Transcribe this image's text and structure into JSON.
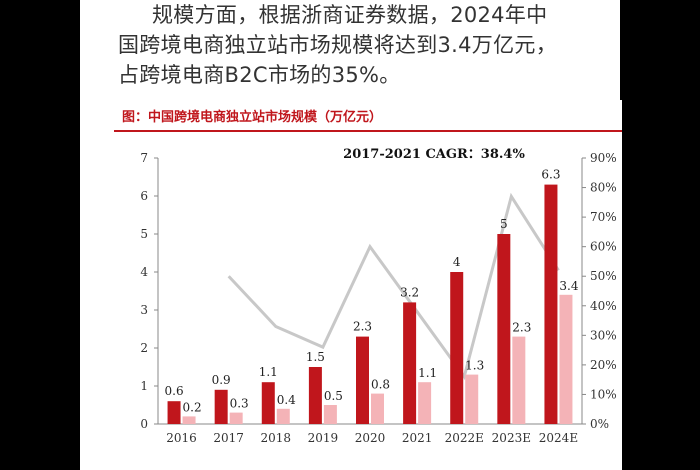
{
  "article": {
    "line1": "规模方面，根据浙商证券数据，2024年中",
    "line2": "国跨境电商独立站市场规模将达到3.4万亿元，",
    "line3": "占跨境电商B2C市场的35%。"
  },
  "chart_data": {
    "type": "bar",
    "title": "图：中国跨境电商独立站市场规模（万亿元）",
    "annotation": "2017-2021 CAGR：38.4%",
    "categories": [
      "2016",
      "2017",
      "2018",
      "2019",
      "2020",
      "2021",
      "2022E",
      "2023E",
      "2024E"
    ],
    "series": [
      {
        "type": "bar",
        "color": "#c0161c",
        "values": [
          0.6,
          0.9,
          1.1,
          1.5,
          2.3,
          3.2,
          4,
          5,
          6.3
        ],
        "labels": [
          "0.6",
          "0.9",
          "1.1",
          "1.5",
          "2.3",
          "3.2",
          "4",
          "5",
          "6.3"
        ]
      },
      {
        "type": "bar",
        "color": "#f4b3b7",
        "values": [
          0.2,
          0.3,
          0.4,
          0.5,
          0.8,
          1.1,
          1.3,
          2.3,
          3.4
        ],
        "labels": [
          "0.2",
          "0.3",
          "0.4",
          "0.5",
          "0.8",
          "1.1",
          "1.3",
          "2.3",
          "3.4"
        ]
      },
      {
        "type": "line",
        "axis": "right",
        "color": "#c8c8c8",
        "values": [
          null,
          50,
          33,
          26,
          60,
          38,
          16,
          77,
          52
        ]
      }
    ],
    "y_left": {
      "min": 0,
      "max": 7,
      "ticks": [
        "0",
        "1",
        "2",
        "3",
        "4",
        "5",
        "6",
        "7"
      ]
    },
    "y_right": {
      "min": 0,
      "max": 90,
      "ticks": [
        "0%",
        "10%",
        "20%",
        "30%",
        "40%",
        "50%",
        "60%",
        "70%",
        "80%",
        "90%"
      ]
    },
    "grid": false
  }
}
